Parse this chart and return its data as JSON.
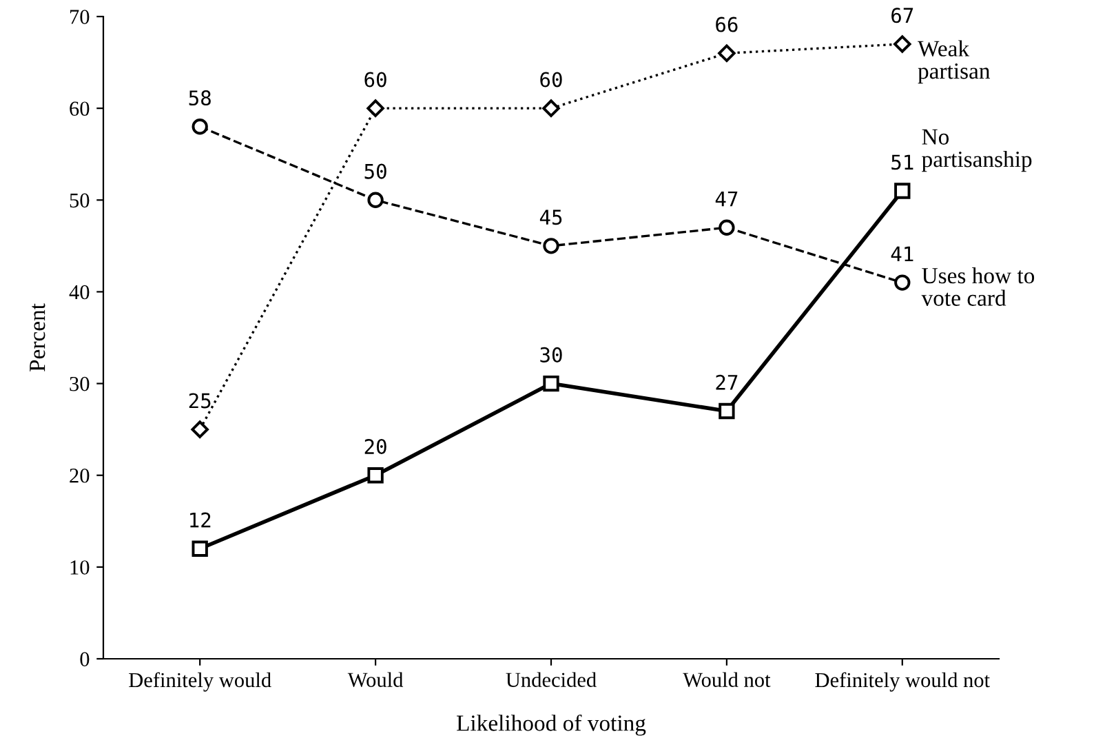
{
  "chart_data": {
    "type": "line",
    "xlabel": "Likelihood of voting",
    "ylabel": "Percent",
    "categories": [
      "Definitely would",
      "Would",
      "Undecided",
      "Would not",
      "Definitely would not"
    ],
    "series": [
      {
        "name": "Weak\npartisan",
        "color": "#000000",
        "values": [
          25,
          60,
          60,
          66,
          67
        ],
        "marker": "diamond",
        "line_style": "dotted"
      },
      {
        "name": "Uses how to\nvote card",
        "color": "#000000",
        "values": [
          58,
          50,
          45,
          47,
          41
        ],
        "marker": "circle",
        "line_style": "dashed"
      },
      {
        "name": "No\npartisanship",
        "color": "#000000",
        "values": [
          12,
          20,
          30,
          27,
          51
        ],
        "marker": "square",
        "line_style": "solid"
      }
    ],
    "ylim": [
      0,
      70
    ],
    "yticks": [
      0,
      10,
      20,
      30,
      40,
      50,
      60,
      70
    ],
    "grid": false,
    "data_labels": true
  }
}
